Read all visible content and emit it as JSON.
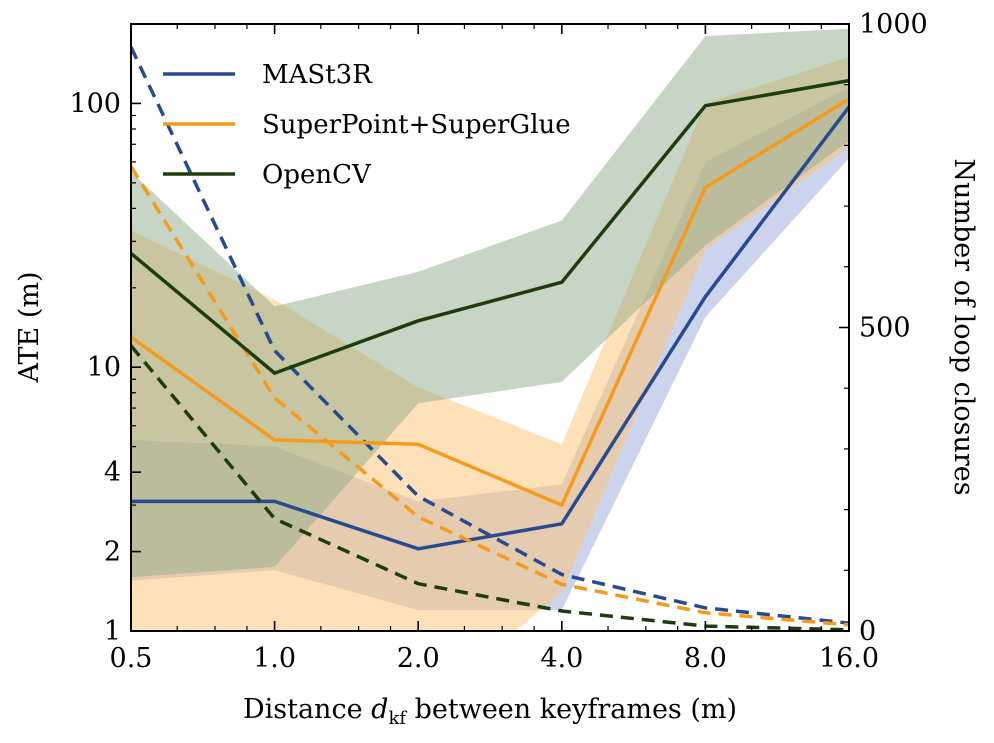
{
  "chart_data": {
    "type": "line",
    "xlabel_prefix": "Distance ",
    "xlabel_var": "d",
    "xlabel_sub": "kf",
    "xlabel_suffix": " between keyframes (m)",
    "ylabel": "ATE (m)",
    "y2label": "Number of loop closures",
    "x_ticks": [
      "0.5",
      "1.0",
      "2.0",
      "4.0",
      "8.0",
      "16.0"
    ],
    "x_values": [
      0.5,
      1.0,
      2.0,
      4.0,
      8.0,
      16.0
    ],
    "x_scale": "log2",
    "xlim": [
      0.5,
      16.0
    ],
    "y_scale": "log",
    "ylim": [
      1,
      200
    ],
    "y_ticks": [
      {
        "value": 1,
        "label": "1"
      },
      {
        "value": 2,
        "label": "2"
      },
      {
        "value": 4,
        "label": "4"
      },
      {
        "value": 10,
        "label": "10"
      },
      {
        "value": 100,
        "label": "100"
      }
    ],
    "y2_scale": "linear",
    "y2lim": [
      0,
      1000
    ],
    "y2_ticks": [
      {
        "value": 0,
        "label": "0"
      },
      {
        "value": 500,
        "label": "500"
      },
      {
        "value": 1000,
        "label": "1000"
      }
    ],
    "legend_position": "top-left",
    "grid": false,
    "series": [
      {
        "name": "MASt3R",
        "color": "#2a4a8f",
        "band_color": "#9aa9dc",
        "ate": [
          3.1,
          3.1,
          2.05,
          2.55,
          18.5,
          97
        ],
        "ate_low": [
          1.55,
          1.7,
          1.2,
          1.2,
          15.5,
          62
        ],
        "ate_high": [
          5.3,
          5.0,
          3.1,
          3.6,
          60,
          115
        ],
        "loop_closures": [
          962,
          462,
          222,
          93,
          38,
          13
        ]
      },
      {
        "name": "SuperPoint+SuperGlue",
        "color": "#f59a1a",
        "band_color": "#fdc372",
        "ate": [
          13,
          5.3,
          5.1,
          3.0,
          48,
          104
        ],
        "ate_low": [
          0.5,
          0.5,
          0.5,
          1.4,
          28,
          68
        ],
        "ate_high": [
          33,
          18,
          8.4,
          5.1,
          100,
          150
        ],
        "loop_closures": [
          765,
          384,
          188,
          77,
          30,
          10
        ]
      },
      {
        "name": "OpenCV",
        "color": "#1e3d0f",
        "band_color": "#8fac8a",
        "ate": [
          27,
          9.5,
          15,
          21,
          98,
          122
        ],
        "ate_low": [
          1.6,
          1.75,
          7.3,
          8.8,
          29,
          72
        ],
        "ate_high": [
          55,
          17,
          23,
          36,
          180,
          192
        ],
        "loop_closures": [
          470,
          185,
          78,
          33,
          8,
          2
        ]
      }
    ]
  }
}
